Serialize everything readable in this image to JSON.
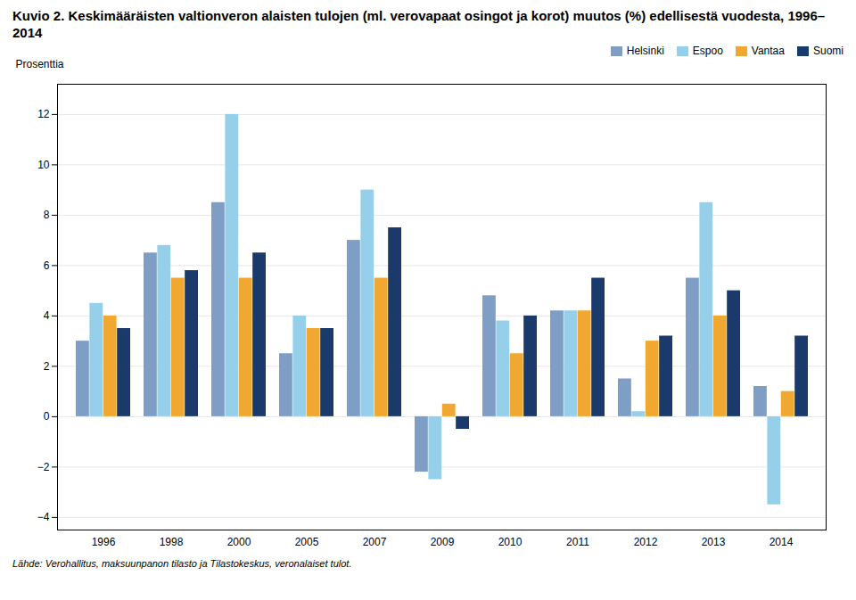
{
  "chart_data": {
    "type": "bar",
    "title": "Kuvio 2. Keskimääräisten valtionveron alaisten tulojen (ml. verovapaat osingot ja korot) muutos (%) edellisestä vuodesta, 1996–2014",
    "y_label": "Prosenttia",
    "caption": "Lähde: Verohallitus, maksuunpanon tilasto ja Tilastokeskus, veronalaiset tulot.",
    "categories": [
      "1996",
      "1998",
      "2000",
      "2005",
      "2007",
      "2009",
      "2010",
      "2011",
      "2012",
      "2013",
      "2014"
    ],
    "series": [
      {
        "name": "Helsinki",
        "color": "#7f9ec5",
        "values": [
          3.0,
          6.5,
          8.5,
          2.5,
          7.0,
          -2.2,
          4.8,
          4.2,
          1.5,
          5.5,
          1.2
        ]
      },
      {
        "name": "Espoo",
        "color": "#95cfe9",
        "values": [
          4.5,
          6.8,
          12.0,
          4.0,
          9.0,
          -2.5,
          3.8,
          4.2,
          0.2,
          8.5,
          -3.5
        ]
      },
      {
        "name": "Vantaa",
        "color": "#f0a830",
        "values": [
          4.0,
          5.5,
          5.5,
          3.5,
          5.5,
          0.5,
          2.5,
          4.2,
          3.0,
          4.0,
          1.0
        ]
      },
      {
        "name": "Suomi",
        "color": "#1a3a6b",
        "values": [
          3.5,
          5.8,
          6.5,
          3.5,
          7.5,
          -0.5,
          4.0,
          5.5,
          3.2,
          5.0,
          3.2
        ]
      }
    ],
    "ylim": [
      -4.5,
      13.2
    ],
    "yticks": [
      -4,
      -2,
      0,
      2,
      4,
      6,
      8,
      10,
      12
    ],
    "grid": true,
    "legend": "upper right"
  }
}
